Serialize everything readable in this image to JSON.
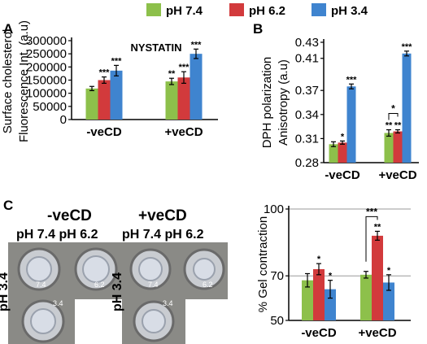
{
  "panel_labels": {
    "a": "A",
    "b": "B",
    "c": "C"
  },
  "legend": [
    {
      "label": "pH 7.4",
      "color": "#8dc04b"
    },
    {
      "label": "pH 6.2",
      "color": "#d23a3c"
    },
    {
      "label": "pH 3.4",
      "color": "#3f84cf"
    }
  ],
  "gel": {
    "neg_title": "-veCD",
    "pos_title": "+veCD",
    "neg_top_labels": "pH 7.4  pH 6.2",
    "pos_top_labels": "pH 7.4 pH 6.2",
    "neg_side_label": "pH 3.4",
    "pos_side_label": "pH 3.4",
    "well_labels": [
      "7.4",
      "6.2",
      "3.4"
    ]
  },
  "chart_data": [
    {
      "type": "bar",
      "id": "A",
      "annotation": "NYSTATIN",
      "ylabel": [
        "Surface cholesterol",
        "Fluorescence Int. (a.u)"
      ],
      "categories": [
        "-veCD",
        "+veCD"
      ],
      "ylim": [
        0,
        300000
      ],
      "yticks": [
        0,
        50000,
        100000,
        150000,
        200000,
        250000,
        300000
      ],
      "series": [
        {
          "name": "pH 7.4",
          "values": [
            118000,
            145000
          ],
          "errors": [
            8000,
            12000
          ],
          "sig": [
            "",
            "**"
          ]
        },
        {
          "name": "pH 6.2",
          "values": [
            150000,
            160000
          ],
          "errors": [
            12000,
            22000
          ],
          "sig": [
            "***",
            "***"
          ]
        },
        {
          "name": "pH 3.4",
          "values": [
            186000,
            250000
          ],
          "errors": [
            20000,
            18000
          ],
          "sig": [
            "***",
            "***"
          ]
        }
      ]
    },
    {
      "type": "bar",
      "id": "B",
      "ylabel": [
        "DPH polarization",
        "Anisotropy (a.u)"
      ],
      "categories": [
        "-veCD",
        "+veCD"
      ],
      "ylim": [
        0.28,
        0.43
      ],
      "yticks": [
        0.28,
        0.31,
        0.34,
        0.37,
        0.41,
        0.43
      ],
      "series": [
        {
          "name": "pH 7.4",
          "values": [
            0.303,
            0.317
          ],
          "errors": [
            0.003,
            0.004
          ],
          "sig": [
            "",
            "**"
          ]
        },
        {
          "name": "pH 6.2",
          "values": [
            0.305,
            0.319
          ],
          "errors": [
            0.002,
            0.002
          ],
          "sig": [
            "*",
            "**"
          ]
        },
        {
          "name": "pH 3.4",
          "values": [
            0.375,
            0.416
          ],
          "errors": [
            0.003,
            0.003
          ],
          "sig": [
            "***",
            "***"
          ]
        }
      ],
      "bracket": {
        "label": "*"
      }
    },
    {
      "type": "bar",
      "id": "C",
      "ylabel": [
        "% Gel contraction"
      ],
      "categories": [
        "-veCD",
        "+veCD"
      ],
      "ylim": [
        50,
        100
      ],
      "yticks": [
        50,
        70,
        100
      ],
      "grid": "horizontal at ticks",
      "series": [
        {
          "name": "pH 7.4",
          "values": [
            68,
            70.5
          ],
          "errors": [
            3,
            1.5
          ],
          "sig": [
            "",
            ""
          ]
        },
        {
          "name": "pH 6.2",
          "values": [
            73,
            88
          ],
          "errors": [
            2.5,
            2
          ],
          "sig": [
            "*",
            "**"
          ]
        },
        {
          "name": "pH 3.4",
          "values": [
            64,
            67
          ],
          "errors": [
            4,
            3.5
          ],
          "sig": [
            "*",
            "*"
          ]
        }
      ],
      "bracket": {
        "label": "***"
      }
    }
  ]
}
